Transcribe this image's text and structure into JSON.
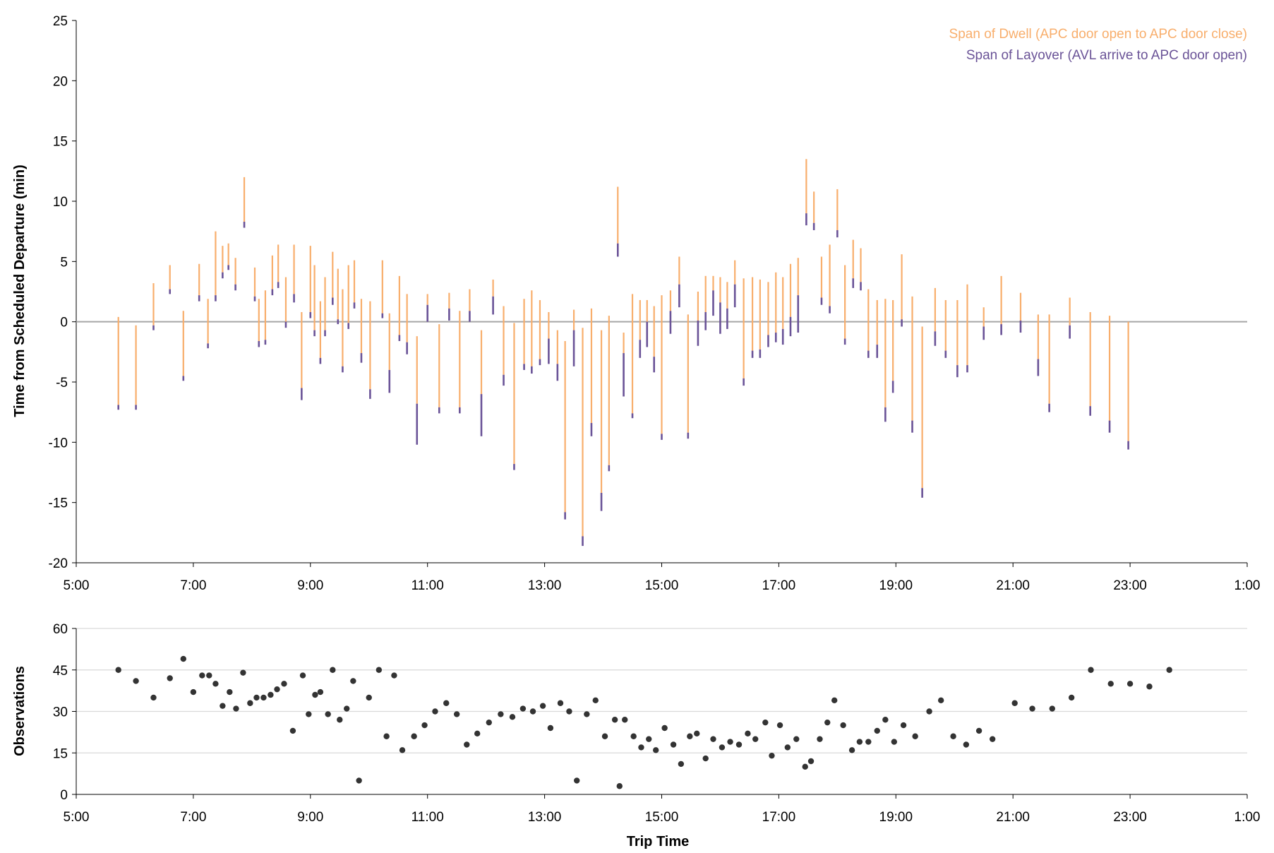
{
  "chart_data": [
    {
      "type": "range-bar",
      "ylabel": "Time from Scheduled Departure (min)",
      "xlabel": "",
      "ylim": [
        -20,
        25
      ],
      "yticks": [
        -20,
        -15,
        -10,
        -5,
        0,
        5,
        10,
        15,
        20,
        25
      ],
      "xlim": [
        5,
        25
      ],
      "xticks": [
        5,
        7,
        9,
        11,
        13,
        15,
        17,
        19,
        21,
        23,
        25
      ],
      "xtick_labels": [
        "5:00",
        "7:00",
        "9:00",
        "11:00",
        "13:00",
        "15:00",
        "17:00",
        "19:00",
        "21:00",
        "23:00",
        "1:00"
      ],
      "grid": false,
      "legend_position": "top-right",
      "series": [
        {
          "name": "Span of Dwell (APC door open to APC door close)",
          "color": "#F8AE6C"
        },
        {
          "name": "Span of Layover (AVL arrive to APC door open)",
          "color": "#6A5397"
        }
      ],
      "bars": [
        {
          "t": 5.72,
          "lo": -7.3,
          "mid": -6.9,
          "hi": 0.4
        },
        {
          "t": 6.02,
          "lo": -7.3,
          "mid": -6.9,
          "hi": -0.3
        },
        {
          "t": 6.32,
          "lo": -0.7,
          "mid": -0.3,
          "hi": 3.2
        },
        {
          "t": 6.6,
          "lo": 2.3,
          "mid": 2.7,
          "hi": 4.7
        },
        {
          "t": 6.83,
          "lo": -4.9,
          "mid": -4.5,
          "hi": 0.9
        },
        {
          "t": 7.1,
          "lo": 1.7,
          "mid": 2.2,
          "hi": 4.8
        },
        {
          "t": 7.25,
          "lo": -2.2,
          "mid": -1.8,
          "hi": 1.9
        },
        {
          "t": 7.38,
          "lo": 1.7,
          "mid": 2.2,
          "hi": 7.5
        },
        {
          "t": 7.5,
          "lo": 3.6,
          "mid": 4.1,
          "hi": 6.3
        },
        {
          "t": 7.6,
          "lo": 4.3,
          "mid": 4.7,
          "hi": 6.5
        },
        {
          "t": 7.72,
          "lo": 2.6,
          "mid": 3.1,
          "hi": 5.3
        },
        {
          "t": 7.87,
          "lo": 7.8,
          "mid": 8.3,
          "hi": 12.0
        },
        {
          "t": 8.05,
          "lo": 1.7,
          "mid": 2.1,
          "hi": 4.5
        },
        {
          "t": 8.12,
          "lo": -2.1,
          "mid": -1.6,
          "hi": 1.9
        },
        {
          "t": 8.23,
          "lo": -1.9,
          "mid": -1.5,
          "hi": 2.6
        },
        {
          "t": 8.35,
          "lo": 2.2,
          "mid": 2.7,
          "hi": 5.5
        },
        {
          "t": 8.45,
          "lo": 2.8,
          "mid": 3.3,
          "hi": 6.4
        },
        {
          "t": 8.58,
          "lo": -0.5,
          "mid": 0.0,
          "hi": 3.7
        },
        {
          "t": 8.72,
          "lo": 1.6,
          "mid": 2.3,
          "hi": 6.4
        },
        {
          "t": 8.85,
          "lo": -6.5,
          "mid": -5.5,
          "hi": 0.8
        },
        {
          "t": 9.0,
          "lo": 0.3,
          "mid": 0.8,
          "hi": 6.3
        },
        {
          "t": 9.07,
          "lo": -1.2,
          "mid": -0.7,
          "hi": 4.7
        },
        {
          "t": 9.17,
          "lo": -3.5,
          "mid": -3.0,
          "hi": 1.7
        },
        {
          "t": 9.25,
          "lo": -1.2,
          "mid": -0.7,
          "hi": 3.7
        },
        {
          "t": 9.38,
          "lo": 1.4,
          "mid": 2.0,
          "hi": 5.8
        },
        {
          "t": 9.47,
          "lo": -0.2,
          "mid": 0.2,
          "hi": 4.4
        },
        {
          "t": 9.55,
          "lo": -4.2,
          "mid": -3.7,
          "hi": 2.7
        },
        {
          "t": 9.65,
          "lo": -0.6,
          "mid": -0.1,
          "hi": 4.7
        },
        {
          "t": 9.75,
          "lo": 1.1,
          "mid": 1.6,
          "hi": 5.1
        },
        {
          "t": 9.87,
          "lo": -3.4,
          "mid": -2.6,
          "hi": 1.9
        },
        {
          "t": 10.02,
          "lo": -6.4,
          "mid": -5.6,
          "hi": 1.7
        },
        {
          "t": 10.23,
          "lo": 0.3,
          "mid": 0.7,
          "hi": 5.1
        },
        {
          "t": 10.35,
          "lo": -5.9,
          "mid": -4.0,
          "hi": 0.7
        },
        {
          "t": 10.52,
          "lo": -1.6,
          "mid": -1.1,
          "hi": 3.8
        },
        {
          "t": 10.65,
          "lo": -2.7,
          "mid": -1.7,
          "hi": 2.3
        },
        {
          "t": 10.82,
          "lo": -10.2,
          "mid": -6.8,
          "hi": -1.2
        },
        {
          "t": 11.0,
          "lo": 0.0,
          "mid": 1.4,
          "hi": 2.3
        },
        {
          "t": 11.2,
          "lo": -7.6,
          "mid": -7.1,
          "hi": -0.2
        },
        {
          "t": 11.37,
          "lo": 0.1,
          "mid": 1.1,
          "hi": 2.4
        },
        {
          "t": 11.55,
          "lo": -7.6,
          "mid": -7.1,
          "hi": 0.9
        },
        {
          "t": 11.72,
          "lo": 0.0,
          "mid": 0.9,
          "hi": 2.7
        },
        {
          "t": 11.92,
          "lo": -9.5,
          "mid": -6.0,
          "hi": -0.7
        },
        {
          "t": 12.12,
          "lo": 0.6,
          "mid": 2.1,
          "hi": 3.5
        },
        {
          "t": 12.3,
          "lo": -5.3,
          "mid": -4.4,
          "hi": 1.3
        },
        {
          "t": 12.48,
          "lo": -12.3,
          "mid": -11.8,
          "hi": -0.1
        },
        {
          "t": 12.65,
          "lo": -4.0,
          "mid": -3.5,
          "hi": 1.9
        },
        {
          "t": 12.78,
          "lo": -4.3,
          "mid": -3.7,
          "hi": 2.6
        },
        {
          "t": 12.92,
          "lo": -3.6,
          "mid": -3.1,
          "hi": 1.8
        },
        {
          "t": 13.07,
          "lo": -3.5,
          "mid": -1.4,
          "hi": 0.8
        },
        {
          "t": 13.22,
          "lo": -4.9,
          "mid": -3.5,
          "hi": -0.7
        },
        {
          "t": 13.35,
          "lo": -16.4,
          "mid": -15.8,
          "hi": -1.6
        },
        {
          "t": 13.5,
          "lo": -3.7,
          "mid": -0.7,
          "hi": 1.0
        },
        {
          "t": 13.65,
          "lo": -18.6,
          "mid": -17.8,
          "hi": -0.5
        },
        {
          "t": 13.8,
          "lo": -9.5,
          "mid": -8.4,
          "hi": 1.1
        },
        {
          "t": 13.97,
          "lo": -15.7,
          "mid": -14.2,
          "hi": -0.7
        },
        {
          "t": 14.1,
          "lo": -12.4,
          "mid": -11.9,
          "hi": 0.5
        },
        {
          "t": 14.25,
          "lo": 5.4,
          "mid": 6.5,
          "hi": 11.2
        },
        {
          "t": 14.35,
          "lo": -6.2,
          "mid": -2.6,
          "hi": -0.9
        },
        {
          "t": 14.5,
          "lo": -8.0,
          "mid": -7.6,
          "hi": 2.3
        },
        {
          "t": 14.63,
          "lo": -3.0,
          "mid": -1.5,
          "hi": 1.8
        },
        {
          "t": 14.75,
          "lo": -2.1,
          "mid": 0.0,
          "hi": 1.8
        },
        {
          "t": 14.87,
          "lo": -4.2,
          "mid": -2.9,
          "hi": 1.3
        },
        {
          "t": 15.0,
          "lo": -9.8,
          "mid": -9.3,
          "hi": 2.2
        },
        {
          "t": 15.15,
          "lo": -1.0,
          "mid": 0.9,
          "hi": 2.6
        },
        {
          "t": 15.3,
          "lo": 1.2,
          "mid": 3.1,
          "hi": 5.4
        },
        {
          "t": 15.45,
          "lo": -9.7,
          "mid": -9.2,
          "hi": 0.6
        },
        {
          "t": 15.62,
          "lo": -2.0,
          "mid": 0.1,
          "hi": 2.5
        },
        {
          "t": 15.75,
          "lo": -0.7,
          "mid": 0.8,
          "hi": 3.8
        },
        {
          "t": 15.88,
          "lo": 0.5,
          "mid": 2.6,
          "hi": 3.8
        },
        {
          "t": 16.0,
          "lo": -1.0,
          "mid": 1.6,
          "hi": 3.7
        },
        {
          "t": 16.12,
          "lo": -0.6,
          "mid": 1.1,
          "hi": 3.3
        },
        {
          "t": 16.25,
          "lo": 1.2,
          "mid": 3.1,
          "hi": 5.1
        },
        {
          "t": 16.4,
          "lo": -5.3,
          "mid": -4.7,
          "hi": 3.6
        },
        {
          "t": 16.55,
          "lo": -3.0,
          "mid": -2.4,
          "hi": 3.7
        },
        {
          "t": 16.68,
          "lo": -3.0,
          "mid": -2.3,
          "hi": 3.5
        },
        {
          "t": 16.82,
          "lo": -2.1,
          "mid": -1.1,
          "hi": 3.3
        },
        {
          "t": 16.95,
          "lo": -1.7,
          "mid": -0.9,
          "hi": 4.1
        },
        {
          "t": 17.07,
          "lo": -1.9,
          "mid": -0.6,
          "hi": 3.7
        },
        {
          "t": 17.2,
          "lo": -1.2,
          "mid": 0.4,
          "hi": 4.8
        },
        {
          "t": 17.33,
          "lo": -0.9,
          "mid": 2.2,
          "hi": 5.3
        },
        {
          "t": 17.47,
          "lo": 8.0,
          "mid": 9.0,
          "hi": 13.5
        },
        {
          "t": 17.6,
          "lo": 7.6,
          "mid": 8.2,
          "hi": 10.8
        },
        {
          "t": 17.73,
          "lo": 1.4,
          "mid": 2.0,
          "hi": 5.4
        },
        {
          "t": 17.87,
          "lo": 0.7,
          "mid": 1.3,
          "hi": 6.4
        },
        {
          "t": 18.0,
          "lo": 7.0,
          "mid": 7.6,
          "hi": 11.0
        },
        {
          "t": 18.13,
          "lo": -1.9,
          "mid": -1.4,
          "hi": 4.7
        },
        {
          "t": 18.27,
          "lo": 2.8,
          "mid": 3.6,
          "hi": 6.8
        },
        {
          "t": 18.4,
          "lo": 2.6,
          "mid": 3.3,
          "hi": 6.1
        },
        {
          "t": 18.53,
          "lo": -3.0,
          "mid": -2.4,
          "hi": 2.7
        },
        {
          "t": 18.68,
          "lo": -3.0,
          "mid": -1.9,
          "hi": 1.8
        },
        {
          "t": 18.82,
          "lo": -8.3,
          "mid": -7.1,
          "hi": 1.9
        },
        {
          "t": 18.95,
          "lo": -5.9,
          "mid": -4.9,
          "hi": 1.8
        },
        {
          "t": 19.1,
          "lo": -0.4,
          "mid": 0.2,
          "hi": 5.6
        },
        {
          "t": 19.28,
          "lo": -9.2,
          "mid": -8.2,
          "hi": 2.1
        },
        {
          "t": 19.45,
          "lo": -14.6,
          "mid": -13.8,
          "hi": -0.4
        },
        {
          "t": 19.67,
          "lo": -2.0,
          "mid": -0.8,
          "hi": 2.8
        },
        {
          "t": 19.85,
          "lo": -3.0,
          "mid": -2.4,
          "hi": 1.8
        },
        {
          "t": 20.05,
          "lo": -4.6,
          "mid": -3.6,
          "hi": 1.8
        },
        {
          "t": 20.22,
          "lo": -4.2,
          "mid": -3.6,
          "hi": 3.1
        },
        {
          "t": 20.5,
          "lo": -1.5,
          "mid": -0.4,
          "hi": 1.2
        },
        {
          "t": 20.8,
          "lo": -1.1,
          "mid": -0.2,
          "hi": 3.8
        },
        {
          "t": 21.13,
          "lo": -0.9,
          "mid": 0.1,
          "hi": 2.4
        },
        {
          "t": 21.43,
          "lo": -4.5,
          "mid": -3.1,
          "hi": 0.6
        },
        {
          "t": 21.62,
          "lo": -7.5,
          "mid": -6.8,
          "hi": 0.6
        },
        {
          "t": 21.97,
          "lo": -1.4,
          "mid": -0.3,
          "hi": 2.0
        },
        {
          "t": 22.32,
          "lo": -7.8,
          "mid": -7.0,
          "hi": 0.8
        },
        {
          "t": 22.65,
          "lo": -9.2,
          "mid": -8.2,
          "hi": 0.5
        },
        {
          "t": 22.97,
          "lo": -10.6,
          "mid": -9.9,
          "hi": 0.0
        }
      ]
    },
    {
      "type": "scatter",
      "ylabel": "Observations",
      "xlabel": "Trip Time",
      "ylim": [
        0,
        60
      ],
      "yticks": [
        0,
        15,
        30,
        45,
        60
      ],
      "xlim": [
        5,
        25
      ],
      "xticks": [
        5,
        7,
        9,
        11,
        13,
        15,
        17,
        19,
        21,
        23,
        25
      ],
      "xtick_labels": [
        "5:00",
        "7:00",
        "9:00",
        "11:00",
        "13:00",
        "15:00",
        "17:00",
        "19:00",
        "21:00",
        "23:00",
        "1:00"
      ],
      "grid": true,
      "color": "#333333",
      "points": [
        [
          5.72,
          45
        ],
        [
          6.02,
          41
        ],
        [
          6.32,
          35
        ],
        [
          6.6,
          42
        ],
        [
          6.83,
          49
        ],
        [
          7.0,
          37
        ],
        [
          7.15,
          43
        ],
        [
          7.27,
          43
        ],
        [
          7.38,
          40
        ],
        [
          7.5,
          32
        ],
        [
          7.62,
          37
        ],
        [
          7.73,
          31
        ],
        [
          7.85,
          44
        ],
        [
          7.97,
          33
        ],
        [
          8.08,
          35
        ],
        [
          8.2,
          35
        ],
        [
          8.32,
          36
        ],
        [
          8.43,
          38
        ],
        [
          8.55,
          40
        ],
        [
          8.7,
          23
        ],
        [
          8.87,
          43
        ],
        [
          8.97,
          29
        ],
        [
          9.08,
          36
        ],
        [
          9.17,
          37
        ],
        [
          9.3,
          29
        ],
        [
          9.38,
          45
        ],
        [
          9.5,
          27
        ],
        [
          9.62,
          31
        ],
        [
          9.73,
          41
        ],
        [
          9.83,
          5
        ],
        [
          10.0,
          35
        ],
        [
          10.17,
          45
        ],
        [
          10.3,
          21
        ],
        [
          10.43,
          43
        ],
        [
          10.57,
          16
        ],
        [
          10.77,
          21
        ],
        [
          10.95,
          25
        ],
        [
          11.13,
          30
        ],
        [
          11.32,
          33
        ],
        [
          11.5,
          29
        ],
        [
          11.67,
          18
        ],
        [
          11.85,
          22
        ],
        [
          12.05,
          26
        ],
        [
          12.25,
          29
        ],
        [
          12.45,
          28
        ],
        [
          12.63,
          31
        ],
        [
          12.8,
          30
        ],
        [
          12.97,
          32
        ],
        [
          13.1,
          24
        ],
        [
          13.27,
          33
        ],
        [
          13.42,
          30
        ],
        [
          13.55,
          5
        ],
        [
          13.72,
          29
        ],
        [
          13.87,
          34
        ],
        [
          14.03,
          21
        ],
        [
          14.2,
          27
        ],
        [
          14.28,
          3
        ],
        [
          14.37,
          27
        ],
        [
          14.52,
          21
        ],
        [
          14.65,
          17
        ],
        [
          14.78,
          20
        ],
        [
          14.9,
          16
        ],
        [
          15.05,
          24
        ],
        [
          15.2,
          18
        ],
        [
          15.33,
          11
        ],
        [
          15.48,
          21
        ],
        [
          15.6,
          22
        ],
        [
          15.75,
          13
        ],
        [
          15.88,
          20
        ],
        [
          16.03,
          17
        ],
        [
          16.17,
          19
        ],
        [
          16.32,
          18
        ],
        [
          16.47,
          22
        ],
        [
          16.6,
          20
        ],
        [
          16.77,
          26
        ],
        [
          16.88,
          14
        ],
        [
          17.02,
          25
        ],
        [
          17.15,
          17
        ],
        [
          17.3,
          20
        ],
        [
          17.45,
          10
        ],
        [
          17.55,
          12
        ],
        [
          17.7,
          20
        ],
        [
          17.83,
          26
        ],
        [
          17.95,
          34
        ],
        [
          18.1,
          25
        ],
        [
          18.25,
          16
        ],
        [
          18.38,
          19
        ],
        [
          18.53,
          19
        ],
        [
          18.68,
          23
        ],
        [
          18.82,
          27
        ],
        [
          18.97,
          19
        ],
        [
          19.13,
          25
        ],
        [
          19.33,
          21
        ],
        [
          19.57,
          30
        ],
        [
          19.77,
          34
        ],
        [
          19.98,
          21
        ],
        [
          20.2,
          18
        ],
        [
          20.42,
          23
        ],
        [
          20.65,
          20
        ],
        [
          21.03,
          33
        ],
        [
          21.33,
          31
        ],
        [
          21.67,
          31
        ],
        [
          22.0,
          35
        ],
        [
          22.33,
          45
        ],
        [
          22.67,
          40
        ],
        [
          23.0,
          40
        ],
        [
          23.33,
          39
        ],
        [
          23.67,
          45
        ]
      ]
    }
  ]
}
